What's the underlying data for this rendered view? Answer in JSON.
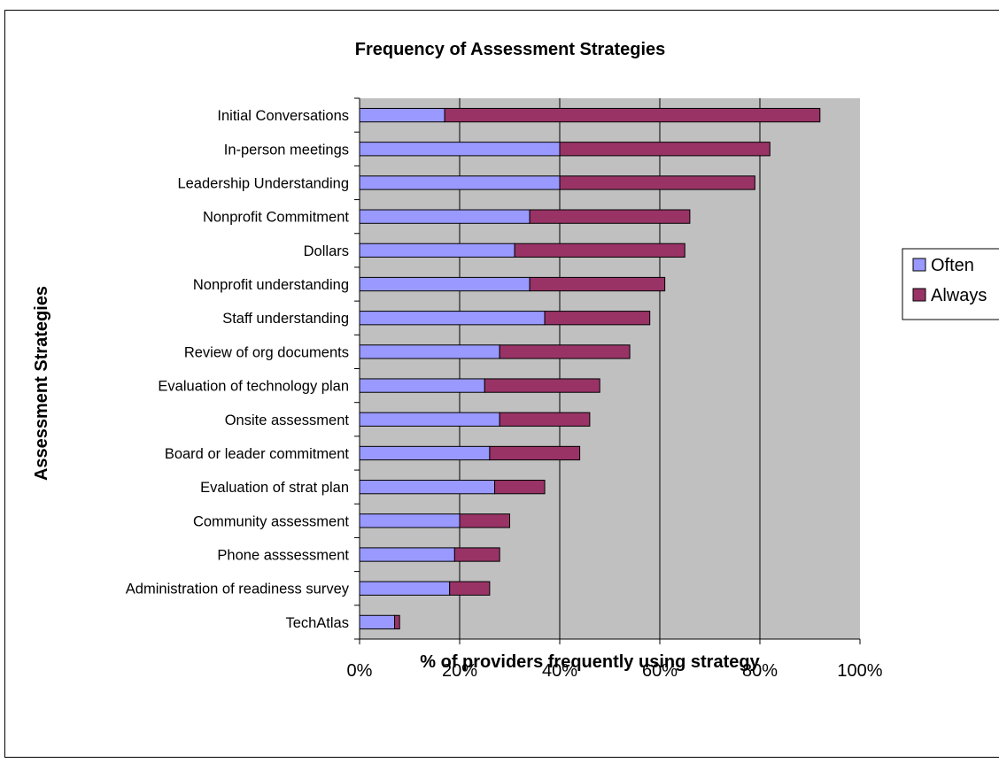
{
  "top_clip_title": "Frequency of Assessment Strategies",
  "chart_data": {
    "type": "bar",
    "orientation": "horizontal",
    "stacked": true,
    "title": "Frequency of Assessment Strategies",
    "xlabel": "% of providers frequently using strategy",
    "ylabel": "Assessment Strategies",
    "xlim": [
      0,
      100
    ],
    "x_ticks": [
      "0%",
      "20%",
      "40%",
      "60%",
      "80%",
      "100%"
    ],
    "grid": "vertical major gridlines",
    "legend_position": "right",
    "categories": [
      "Initial Conversations",
      "In-person meetings",
      "Leadership Understanding",
      "Nonprofit Commitment",
      "Dollars",
      "Nonprofit understanding",
      "Staff understanding",
      "Review of org documents",
      "Evaluation of technology plan",
      "Onsite assessment",
      "Board or leader commitment",
      "Evaluation of strat plan",
      "Community assessment",
      "Phone asssessment",
      "Administration of readiness survey",
      "TechAtlas"
    ],
    "series": [
      {
        "name": "Often",
        "color": "#9999ff",
        "values": [
          17,
          40,
          40,
          34,
          31,
          34,
          37,
          28,
          25,
          28,
          26,
          27,
          20,
          19,
          18,
          7
        ]
      },
      {
        "name": "Always",
        "color": "#993366",
        "values": [
          75,
          42,
          39,
          32,
          34,
          27,
          21,
          26,
          23,
          18,
          18,
          10,
          10,
          9,
          8,
          1
        ]
      }
    ]
  }
}
